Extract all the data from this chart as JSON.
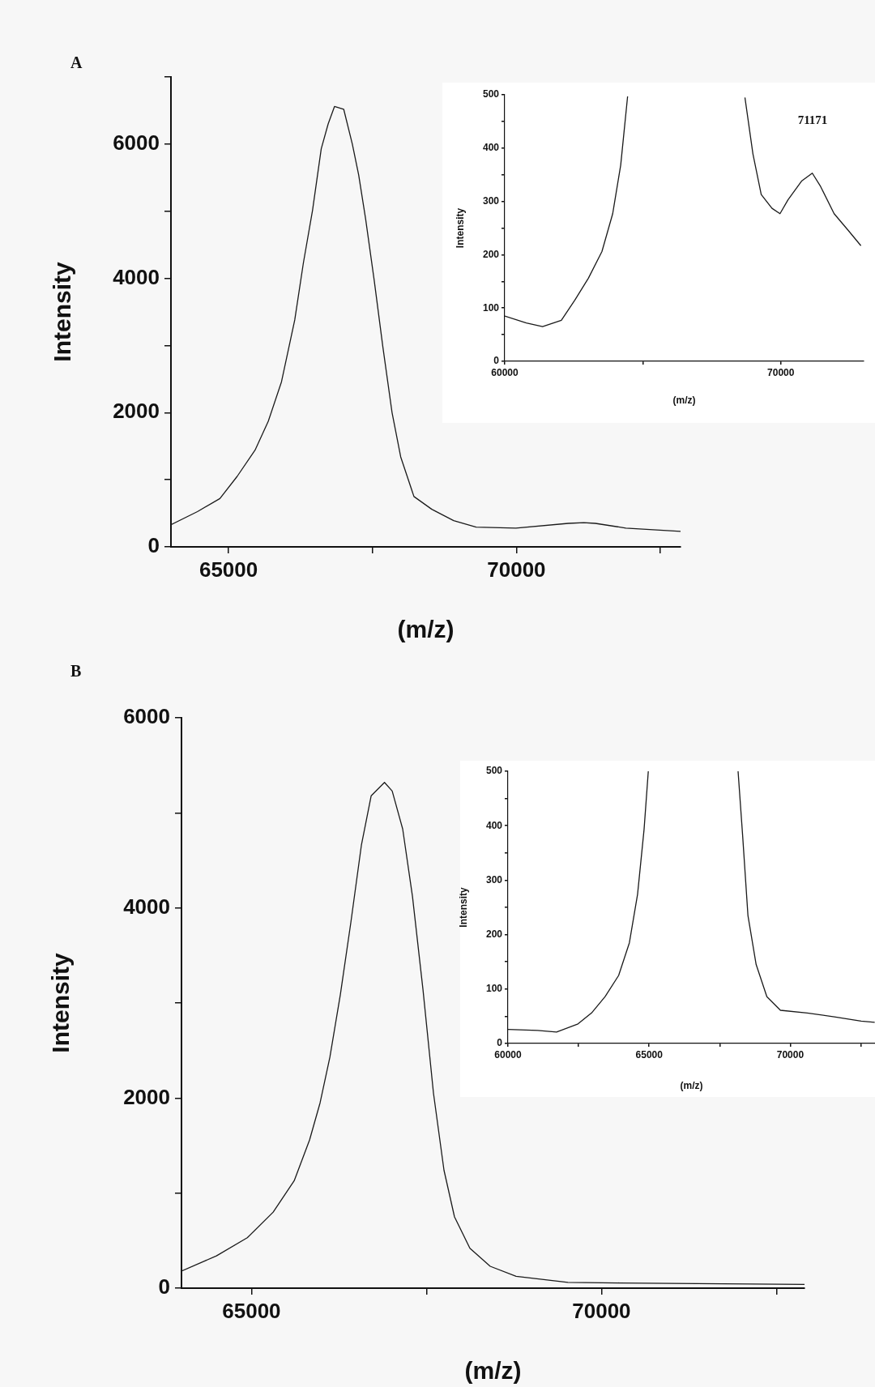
{
  "chart_data": [
    {
      "type": "line",
      "title": "A",
      "xlabel": "(m/z)",
      "ylabel": "Intensity",
      "color": "#1a1a1a",
      "marker": "none",
      "line_style": "solid",
      "x": [
        64000,
        64460,
        64850,
        65150,
        65460,
        65690,
        65920,
        66150,
        66300,
        66460,
        66610,
        66730,
        66840,
        67000,
        67150,
        67260,
        67380,
        67530,
        67680,
        67840,
        67990,
        68220,
        68530,
        68910,
        69300,
        69990,
        70900,
        71170,
        71370,
        71900,
        72850
      ],
      "values": [
        330,
        525,
        720,
        1050,
        1440,
        1870,
        2460,
        3380,
        4230,
        5020,
        5930,
        6300,
        6560,
        6520,
        6000,
        5540,
        4890,
        3970,
        2980,
        2000,
        1340,
        750,
        560,
        390,
        295,
        280,
        350,
        360,
        350,
        280,
        230
      ],
      "xlim": [
        64000,
        72850
      ],
      "xticks": [
        65000,
        {
          "value": 67500,
          "label": null
        },
        70000,
        {
          "value": 72500,
          "label": null
        }
      ],
      "ylim": [
        0,
        7000
      ],
      "yticks": [
        0,
        {
          "value": 1000,
          "label": null
        },
        2000,
        {
          "value": 3000,
          "label": null
        },
        4000,
        {
          "value": 5000,
          "label": null
        },
        6000,
        {
          "value": 7000,
          "label": null
        }
      ]
    },
    {
      "type": "line",
      "xlabel": "(m/z)",
      "ylabel": "Intensity",
      "color": "#1a1a1a",
      "marker": "none",
      "line_style": "solid",
      "x": [
        60000,
        60780,
        61370,
        62050,
        62540,
        63030,
        63520,
        63910,
        64200,
        64450,
        64460,
        68690,
        68700,
        68990,
        69290,
        69680,
        69970,
        70260,
        70750,
        71140,
        71440,
        71930,
        72420,
        72900
      ],
      "values": [
        85,
        72,
        65,
        77,
        115,
        156,
        206,
        277,
        368,
        497,
        null,
        null,
        495,
        389,
        313,
        287,
        277,
        303,
        338,
        353,
        328,
        277,
        247,
        217
      ],
      "xlim": [
        60000,
        73000
      ],
      "xticks": [
        60000,
        {
          "value": 65000,
          "label": null
        },
        70000
      ],
      "ylim": [
        0,
        500
      ],
      "yticks": [
        0,
        {
          "value": 50,
          "label": null
        },
        100,
        {
          "value": 150,
          "label": null
        },
        200,
        {
          "value": 250,
          "label": null
        },
        300,
        {
          "value": 350,
          "label": null
        },
        400,
        {
          "value": 450,
          "label": null
        },
        500
      ],
      "annotations": [
        "71171"
      ]
    },
    {
      "type": "line",
      "title": "B",
      "xlabel": "(m/z)",
      "ylabel": "Intensity",
      "color": "#1a1a1a",
      "marker": "none",
      "line_style": "solid",
      "x": [
        64000,
        64500,
        64940,
        65310,
        65610,
        65830,
        65980,
        66120,
        66270,
        66420,
        66570,
        66710,
        66900,
        67010,
        67160,
        67300,
        67450,
        67600,
        67750,
        67900,
        68120,
        68410,
        68780,
        69520,
        70260,
        71000,
        71740,
        72900
      ],
      "values": [
        180,
        340,
        530,
        800,
        1130,
        1560,
        1950,
        2430,
        3090,
        3850,
        4660,
        5180,
        5320,
        5230,
        4830,
        4120,
        3140,
        2050,
        1240,
        750,
        420,
        230,
        125,
        60,
        55,
        50,
        45,
        40
      ],
      "xlim": [
        64000,
        72900
      ],
      "xticks": [
        65000,
        {
          "value": 67500,
          "label": null
        },
        70000,
        {
          "value": 72500,
          "label": null
        }
      ],
      "ylim": [
        0,
        6000
      ],
      "yticks": [
        0,
        {
          "value": 1000,
          "label": null
        },
        2000,
        {
          "value": 3000,
          "label": null
        },
        4000,
        {
          "value": 5000,
          "label": null
        },
        6000
      ]
    },
    {
      "type": "line",
      "xlabel": "(m/z)",
      "ylabel": "Intensity",
      "color": "#1a1a1a",
      "marker": "none",
      "line_style": "solid",
      "x": [
        60000,
        61050,
        61720,
        62480,
        62960,
        63440,
        63920,
        64300,
        64590,
        64820,
        64970,
        64980,
        68140,
        68150,
        68310,
        68500,
        68790,
        69170,
        69650,
        70600,
        71560,
        72510,
        72990
      ],
      "values": [
        26,
        24,
        21,
        36,
        56,
        86,
        125,
        185,
        274,
        393,
        500,
        null,
        null,
        500,
        383,
        235,
        145,
        86,
        61,
        56,
        49,
        41,
        39
      ],
      "xlim": [
        60000,
        73000
      ],
      "xticks": [
        60000,
        {
          "value": 62500,
          "label": null
        },
        65000,
        {
          "value": 67500,
          "label": null
        },
        70000,
        {
          "value": 72500,
          "label": null
        }
      ],
      "ylim": [
        0,
        500
      ],
      "yticks": [
        0,
        {
          "value": 50,
          "label": null
        },
        100,
        {
          "value": 150,
          "label": null
        },
        200,
        {
          "value": 250,
          "label": null
        },
        300,
        {
          "value": 350,
          "label": null
        },
        400,
        {
          "value": 450,
          "label": null
        },
        500
      ]
    }
  ]
}
